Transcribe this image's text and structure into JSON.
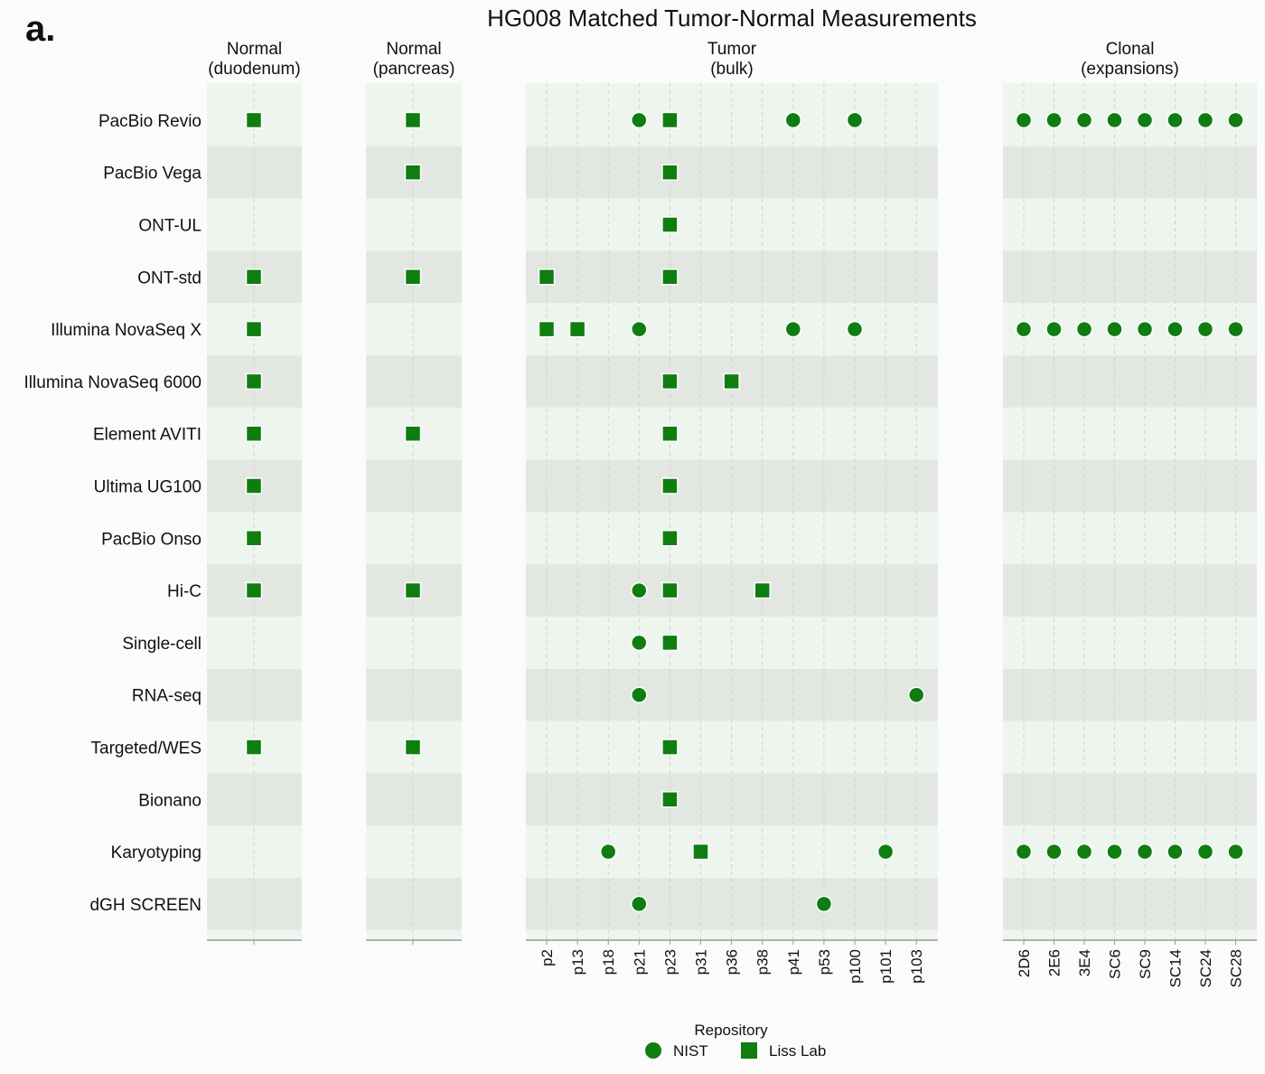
{
  "figure_label": "a.",
  "chart_data": {
    "type": "scatter",
    "title": "HG008  Matched Tumor-Normal Measurements",
    "rows": [
      "PacBio Revio",
      "PacBio Vega",
      "ONT-UL",
      "ONT-std",
      "Illumina NovaSeq X",
      "Illumina NovaSeq 6000",
      "Element AVITI",
      "Ultima UG100",
      "PacBio Onso",
      "Hi-C",
      "Single-cell",
      "RNA-seq",
      "Targeted/WES",
      "Bionano",
      "Karyotyping",
      "dGH SCREEN"
    ],
    "panels": [
      {
        "line1": "Normal",
        "line2": "(duodenum)",
        "columns": [
          ""
        ]
      },
      {
        "line1": "Normal",
        "line2": "(pancreas)",
        "columns": [
          ""
        ]
      },
      {
        "line1": "Tumor",
        "line2": "(bulk)",
        "columns": [
          "p2",
          "p13",
          "p18",
          "p21",
          "p23",
          "p31",
          "p36",
          "p38",
          "p41",
          "p53",
          "p100",
          "p101",
          "p103"
        ]
      },
      {
        "line1": "Clonal",
        "line2": "(expansions)",
        "columns": [
          "2D6",
          "2E6",
          "3E4",
          "SC6",
          "SC9",
          "SC14",
          "SC24",
          "SC28"
        ]
      }
    ],
    "points": [
      {
        "row": 0,
        "panel": 0,
        "col": 0,
        "repo": "Liss Lab"
      },
      {
        "row": 0,
        "panel": 1,
        "col": 0,
        "repo": "Liss Lab"
      },
      {
        "row": 0,
        "panel": 2,
        "col": 3,
        "repo": "NIST"
      },
      {
        "row": 0,
        "panel": 2,
        "col": 4,
        "repo": "Liss Lab"
      },
      {
        "row": 0,
        "panel": 2,
        "col": 8,
        "repo": "NIST"
      },
      {
        "row": 0,
        "panel": 2,
        "col": 10,
        "repo": "NIST"
      },
      {
        "row": 0,
        "panel": 3,
        "col": 0,
        "repo": "NIST"
      },
      {
        "row": 0,
        "panel": 3,
        "col": 1,
        "repo": "NIST"
      },
      {
        "row": 0,
        "panel": 3,
        "col": 2,
        "repo": "NIST"
      },
      {
        "row": 0,
        "panel": 3,
        "col": 3,
        "repo": "NIST"
      },
      {
        "row": 0,
        "panel": 3,
        "col": 4,
        "repo": "NIST"
      },
      {
        "row": 0,
        "panel": 3,
        "col": 5,
        "repo": "NIST"
      },
      {
        "row": 0,
        "panel": 3,
        "col": 6,
        "repo": "NIST"
      },
      {
        "row": 0,
        "panel": 3,
        "col": 7,
        "repo": "NIST"
      },
      {
        "row": 1,
        "panel": 1,
        "col": 0,
        "repo": "Liss Lab"
      },
      {
        "row": 1,
        "panel": 2,
        "col": 4,
        "repo": "Liss Lab"
      },
      {
        "row": 2,
        "panel": 2,
        "col": 4,
        "repo": "Liss Lab"
      },
      {
        "row": 3,
        "panel": 0,
        "col": 0,
        "repo": "Liss Lab"
      },
      {
        "row": 3,
        "panel": 1,
        "col": 0,
        "repo": "Liss Lab"
      },
      {
        "row": 3,
        "panel": 2,
        "col": 0,
        "repo": "Liss Lab"
      },
      {
        "row": 3,
        "panel": 2,
        "col": 4,
        "repo": "Liss Lab"
      },
      {
        "row": 4,
        "panel": 0,
        "col": 0,
        "repo": "Liss Lab"
      },
      {
        "row": 4,
        "panel": 2,
        "col": 0,
        "repo": "Liss Lab"
      },
      {
        "row": 4,
        "panel": 2,
        "col": 1,
        "repo": "Liss Lab"
      },
      {
        "row": 4,
        "panel": 2,
        "col": 3,
        "repo": "NIST"
      },
      {
        "row": 4,
        "panel": 2,
        "col": 8,
        "repo": "NIST"
      },
      {
        "row": 4,
        "panel": 2,
        "col": 10,
        "repo": "NIST"
      },
      {
        "row": 4,
        "panel": 3,
        "col": 0,
        "repo": "NIST"
      },
      {
        "row": 4,
        "panel": 3,
        "col": 1,
        "repo": "NIST"
      },
      {
        "row": 4,
        "panel": 3,
        "col": 2,
        "repo": "NIST"
      },
      {
        "row": 4,
        "panel": 3,
        "col": 3,
        "repo": "NIST"
      },
      {
        "row": 4,
        "panel": 3,
        "col": 4,
        "repo": "NIST"
      },
      {
        "row": 4,
        "panel": 3,
        "col": 5,
        "repo": "NIST"
      },
      {
        "row": 4,
        "panel": 3,
        "col": 6,
        "repo": "NIST"
      },
      {
        "row": 4,
        "panel": 3,
        "col": 7,
        "repo": "NIST"
      },
      {
        "row": 5,
        "panel": 0,
        "col": 0,
        "repo": "Liss Lab"
      },
      {
        "row": 5,
        "panel": 2,
        "col": 4,
        "repo": "Liss Lab"
      },
      {
        "row": 5,
        "panel": 2,
        "col": 6,
        "repo": "Liss Lab"
      },
      {
        "row": 6,
        "panel": 0,
        "col": 0,
        "repo": "Liss Lab"
      },
      {
        "row": 6,
        "panel": 1,
        "col": 0,
        "repo": "Liss Lab"
      },
      {
        "row": 6,
        "panel": 2,
        "col": 4,
        "repo": "Liss Lab"
      },
      {
        "row": 7,
        "panel": 0,
        "col": 0,
        "repo": "Liss Lab"
      },
      {
        "row": 7,
        "panel": 2,
        "col": 4,
        "repo": "Liss Lab"
      },
      {
        "row": 8,
        "panel": 0,
        "col": 0,
        "repo": "Liss Lab"
      },
      {
        "row": 8,
        "panel": 2,
        "col": 4,
        "repo": "Liss Lab"
      },
      {
        "row": 9,
        "panel": 0,
        "col": 0,
        "repo": "Liss Lab"
      },
      {
        "row": 9,
        "panel": 1,
        "col": 0,
        "repo": "Liss Lab"
      },
      {
        "row": 9,
        "panel": 2,
        "col": 3,
        "repo": "NIST"
      },
      {
        "row": 9,
        "panel": 2,
        "col": 4,
        "repo": "Liss Lab"
      },
      {
        "row": 9,
        "panel": 2,
        "col": 7,
        "repo": "Liss Lab"
      },
      {
        "row": 10,
        "panel": 2,
        "col": 3,
        "repo": "NIST"
      },
      {
        "row": 10,
        "panel": 2,
        "col": 4,
        "repo": "Liss Lab"
      },
      {
        "row": 11,
        "panel": 2,
        "col": 3,
        "repo": "NIST"
      },
      {
        "row": 11,
        "panel": 2,
        "col": 12,
        "repo": "NIST"
      },
      {
        "row": 12,
        "panel": 0,
        "col": 0,
        "repo": "Liss Lab"
      },
      {
        "row": 12,
        "panel": 1,
        "col": 0,
        "repo": "Liss Lab"
      },
      {
        "row": 12,
        "panel": 2,
        "col": 4,
        "repo": "Liss Lab"
      },
      {
        "row": 13,
        "panel": 2,
        "col": 4,
        "repo": "Liss Lab"
      },
      {
        "row": 14,
        "panel": 2,
        "col": 2,
        "repo": "NIST"
      },
      {
        "row": 14,
        "panel": 2,
        "col": 5,
        "repo": "Liss Lab"
      },
      {
        "row": 14,
        "panel": 2,
        "col": 11,
        "repo": "NIST"
      },
      {
        "row": 14,
        "panel": 3,
        "col": 0,
        "repo": "NIST"
      },
      {
        "row": 14,
        "panel": 3,
        "col": 1,
        "repo": "NIST"
      },
      {
        "row": 14,
        "panel": 3,
        "col": 2,
        "repo": "NIST"
      },
      {
        "row": 14,
        "panel": 3,
        "col": 3,
        "repo": "NIST"
      },
      {
        "row": 14,
        "panel": 3,
        "col": 4,
        "repo": "NIST"
      },
      {
        "row": 14,
        "panel": 3,
        "col": 5,
        "repo": "NIST"
      },
      {
        "row": 14,
        "panel": 3,
        "col": 6,
        "repo": "NIST"
      },
      {
        "row": 14,
        "panel": 3,
        "col": 7,
        "repo": "NIST"
      },
      {
        "row": 15,
        "panel": 2,
        "col": 3,
        "repo": "NIST"
      },
      {
        "row": 15,
        "panel": 2,
        "col": 9,
        "repo": "NIST"
      }
    ],
    "legend": {
      "title": "Repository",
      "placement": "bottom-center",
      "entries": [
        {
          "name": "NIST",
          "shape": "circle"
        },
        {
          "name": "Liss Lab",
          "shape": "square"
        }
      ]
    },
    "grid": true,
    "colors": {
      "marker": "#0f7d10",
      "marker_stroke": "#ffffff",
      "band_light": "#eef5ee",
      "band_dark": "#e2e7e2",
      "grid_line": "#cdd3cd",
      "axis_line": "#9a9a9a"
    }
  }
}
